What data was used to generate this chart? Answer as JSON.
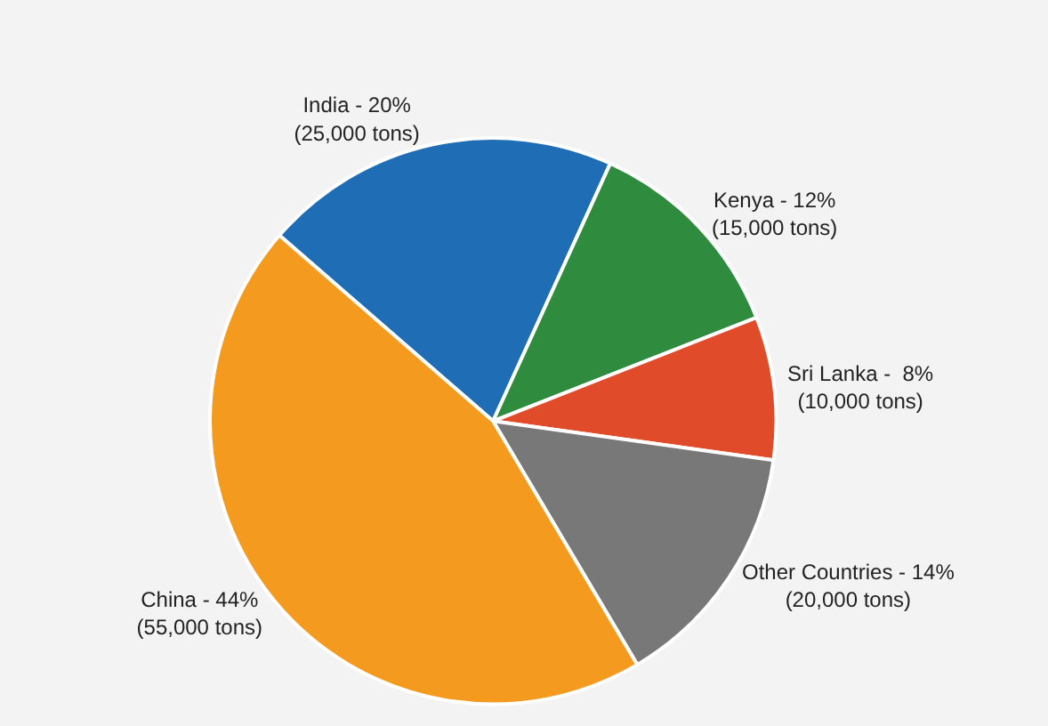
{
  "chart_data": {
    "type": "pie",
    "categories": [
      "India",
      "Kenya",
      "Sri Lanka",
      "Other Countries",
      "China"
    ],
    "values": [
      20,
      12,
      8,
      14,
      44
    ],
    "value_labels": [
      "20%\n(25,000 tons)",
      "12%\n(15,000 tons)",
      " 8%\n(10,000 tons)",
      "14%\n(20,000 tons)",
      "44%\n(55,000 tons)"
    ],
    "colors": [
      "#1f6db4",
      "#2f8c3f",
      "#e04b2a",
      "#787878",
      "#f49b1f"
    ],
    "legend": false
  }
}
